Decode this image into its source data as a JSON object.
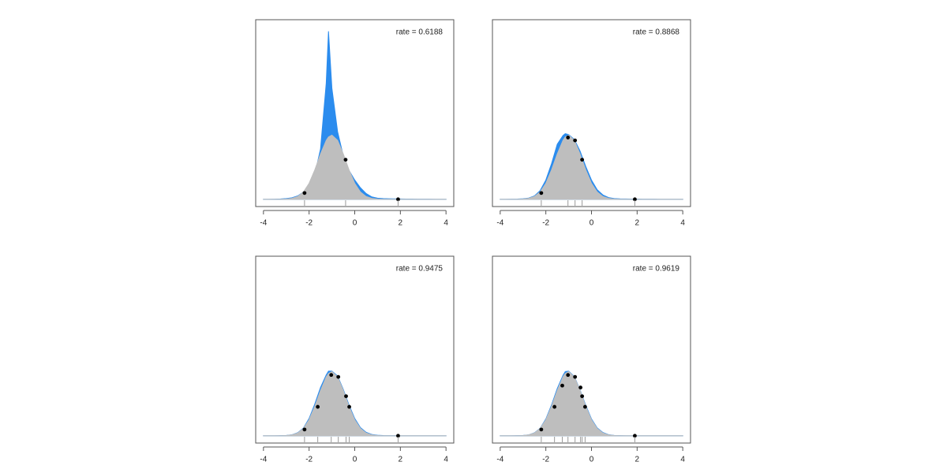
{
  "chart_data": [
    {
      "type": "area",
      "annotation": "rate = 0.6188",
      "x": [
        -4,
        -3.75,
        -3.5,
        -3.25,
        -3,
        -2.75,
        -2.5,
        -2.25,
        -2,
        -1.75,
        -1.5,
        -1.25,
        -1.15,
        -1,
        -0.75,
        -0.5,
        -0.25,
        0,
        0.25,
        0.5,
        0.75,
        1,
        1.25,
        1.5,
        1.75,
        2,
        2.25,
        2.5,
        2.75,
        3,
        3.25,
        3.5,
        3.75,
        4
      ],
      "series": [
        {
          "color": "#2b8cee",
          "values": [
            0,
            0.001,
            0.002,
            0.004,
            0.008,
            0.016,
            0.035,
            0.075,
            0.13,
            0.26,
            0.52,
            1.2,
            1.74,
            1.15,
            0.7,
            0.45,
            0.3,
            0.2,
            0.12,
            0.06,
            0.025,
            0.012,
            0.008,
            0.006,
            0.005,
            0.004,
            0.003,
            0.003,
            0.002,
            0.002,
            0.002,
            0.001,
            0.001,
            0.001
          ]
        },
        {
          "color": "#bebebe",
          "values": [
            0,
            0,
            0.0001,
            0.0006,
            0.0026,
            0.0095,
            0.029,
            0.076,
            0.166,
            0.305,
            0.47,
            0.61,
            0.645,
            0.665,
            0.61,
            0.47,
            0.305,
            0.166,
            0.076,
            0.029,
            0.0095,
            0.0026,
            0.0006,
            0.0001,
            0,
            0,
            0,
            0,
            0,
            0,
            0,
            0,
            0,
            0
          ]
        }
      ],
      "points": {
        "color": "#000000",
        "x": [
          -2.2,
          -0.4,
          1.9
        ],
        "y": [
          0.065,
          0.41,
          0
        ]
      },
      "xlim": [
        -4.34,
        4.34
      ],
      "ylim": [
        -0.075,
        1.86
      ],
      "xticks": [
        -4,
        -2,
        0,
        2,
        4
      ]
    },
    {
      "type": "area",
      "annotation": "rate = 0.8868",
      "x": [
        -4,
        -3.75,
        -3.5,
        -3.25,
        -3,
        -2.75,
        -2.5,
        -2.25,
        -2,
        -1.75,
        -1.5,
        -1.25,
        -1.15,
        -1,
        -0.75,
        -0.5,
        -0.25,
        0,
        0.25,
        0.5,
        0.75,
        1,
        1.25,
        1.5,
        1.75,
        2,
        2.25,
        2.5,
        2.75,
        3,
        3.25,
        3.5,
        3.75,
        4
      ],
      "series": [
        {
          "color": "#2b8cee",
          "values": [
            0.001,
            0.001,
            0.002,
            0.003,
            0.006,
            0.013,
            0.035,
            0.09,
            0.2,
            0.37,
            0.57,
            0.66,
            0.68,
            0.67,
            0.62,
            0.5,
            0.34,
            0.2,
            0.1,
            0.045,
            0.018,
            0.008,
            0.005,
            0.004,
            0.003,
            0.003,
            0.002,
            0.002,
            0.002,
            0.001,
            0.001,
            0.001,
            0.001,
            0.001
          ]
        },
        {
          "color": "#bebebe",
          "values": [
            0,
            0,
            0.0001,
            0.0006,
            0.0026,
            0.0095,
            0.029,
            0.076,
            0.166,
            0.305,
            0.47,
            0.61,
            0.645,
            0.665,
            0.61,
            0.47,
            0.305,
            0.166,
            0.076,
            0.029,
            0.0095,
            0.0026,
            0.0006,
            0.0001,
            0,
            0,
            0,
            0,
            0,
            0,
            0,
            0,
            0,
            0
          ]
        }
      ],
      "points": {
        "color": "#000000",
        "x": [
          -2.2,
          -1.03,
          -0.72,
          -0.41,
          1.9
        ],
        "y": [
          0.065,
          0.64,
          0.61,
          0.41,
          0
        ]
      },
      "xlim": [
        -4.34,
        4.34
      ],
      "ylim": [
        -0.075,
        1.86
      ],
      "xticks": [
        -4,
        -2,
        0,
        2,
        4
      ]
    },
    {
      "type": "area",
      "annotation": "rate = 0.9475",
      "x": [
        -4,
        -3.75,
        -3.5,
        -3.25,
        -3,
        -2.75,
        -2.5,
        -2.25,
        -2,
        -1.75,
        -1.5,
        -1.25,
        -1.15,
        -1,
        -0.75,
        -0.5,
        -0.25,
        0,
        0.25,
        0.5,
        0.75,
        1,
        1.25,
        1.5,
        1.75,
        2,
        2.25,
        2.5,
        2.75,
        3,
        3.25,
        3.5,
        3.75,
        4
      ],
      "series": [
        {
          "color": "#2b8cee",
          "values": [
            0.0005,
            0.001,
            0.001,
            0.002,
            0.004,
            0.011,
            0.032,
            0.08,
            0.18,
            0.33,
            0.5,
            0.63,
            0.67,
            0.67,
            0.62,
            0.48,
            0.32,
            0.18,
            0.085,
            0.036,
            0.014,
            0.006,
            0.003,
            0.002,
            0.002,
            0.001,
            0.001,
            0.001,
            0.001,
            0.001,
            0.001,
            0.0005,
            0.0005,
            0.0005
          ]
        },
        {
          "color": "#bebebe",
          "values": [
            0,
            0,
            0.0001,
            0.0006,
            0.0026,
            0.0095,
            0.029,
            0.076,
            0.166,
            0.305,
            0.47,
            0.61,
            0.645,
            0.665,
            0.61,
            0.47,
            0.305,
            0.166,
            0.076,
            0.029,
            0.0095,
            0.0026,
            0.0006,
            0.0001,
            0,
            0,
            0,
            0,
            0,
            0,
            0,
            0,
            0,
            0
          ]
        }
      ],
      "points": {
        "color": "#000000",
        "x": [
          -2.2,
          -1.62,
          -1.03,
          -0.72,
          -0.38,
          -0.24,
          1.9
        ],
        "y": [
          0.065,
          0.3,
          0.63,
          0.61,
          0.41,
          0.3,
          0
        ]
      },
      "xlim": [
        -4.34,
        4.34
      ],
      "ylim": [
        -0.075,
        1.86
      ],
      "xticks": [
        -4,
        -2,
        0,
        2,
        4
      ]
    },
    {
      "type": "area",
      "annotation": "rate = 0.9619",
      "x": [
        -4,
        -3.75,
        -3.5,
        -3.25,
        -3,
        -2.75,
        -2.5,
        -2.25,
        -2,
        -1.75,
        -1.5,
        -1.25,
        -1.15,
        -1,
        -0.75,
        -0.5,
        -0.25,
        0,
        0.25,
        0.5,
        0.75,
        1,
        1.25,
        1.5,
        1.75,
        2,
        2.25,
        2.5,
        2.75,
        3,
        3.25,
        3.5,
        3.75,
        4
      ],
      "series": [
        {
          "color": "#2b8cee",
          "values": [
            0.0005,
            0.0005,
            0.001,
            0.002,
            0.004,
            0.01,
            0.031,
            0.078,
            0.175,
            0.32,
            0.49,
            0.625,
            0.665,
            0.67,
            0.615,
            0.475,
            0.315,
            0.175,
            0.082,
            0.034,
            0.012,
            0.004,
            0.002,
            0.001,
            0.001,
            0.001,
            0.001,
            0.0005,
            0.0005,
            0.0005,
            0.0005,
            0.0005,
            0.0005,
            0.0005
          ]
        },
        {
          "color": "#bebebe",
          "values": [
            0,
            0,
            0.0001,
            0.0006,
            0.0026,
            0.0095,
            0.029,
            0.076,
            0.166,
            0.305,
            0.47,
            0.61,
            0.645,
            0.665,
            0.61,
            0.47,
            0.305,
            0.166,
            0.076,
            0.029,
            0.0095,
            0.0026,
            0.0006,
            0.0001,
            0,
            0,
            0,
            0,
            0,
            0,
            0,
            0,
            0,
            0
          ]
        }
      ],
      "points": {
        "color": "#000000",
        "x": [
          -2.2,
          -1.62,
          -1.28,
          -1.03,
          -0.72,
          -0.48,
          -0.41,
          -0.28,
          1.9
        ],
        "y": [
          0.065,
          0.3,
          0.52,
          0.63,
          0.61,
          0.5,
          0.41,
          0.3,
          0
        ]
      },
      "xlim": [
        -4.34,
        4.34
      ],
      "ylim": [
        -0.075,
        1.86
      ],
      "xticks": [
        -4,
        -2,
        0,
        2,
        4
      ]
    }
  ]
}
